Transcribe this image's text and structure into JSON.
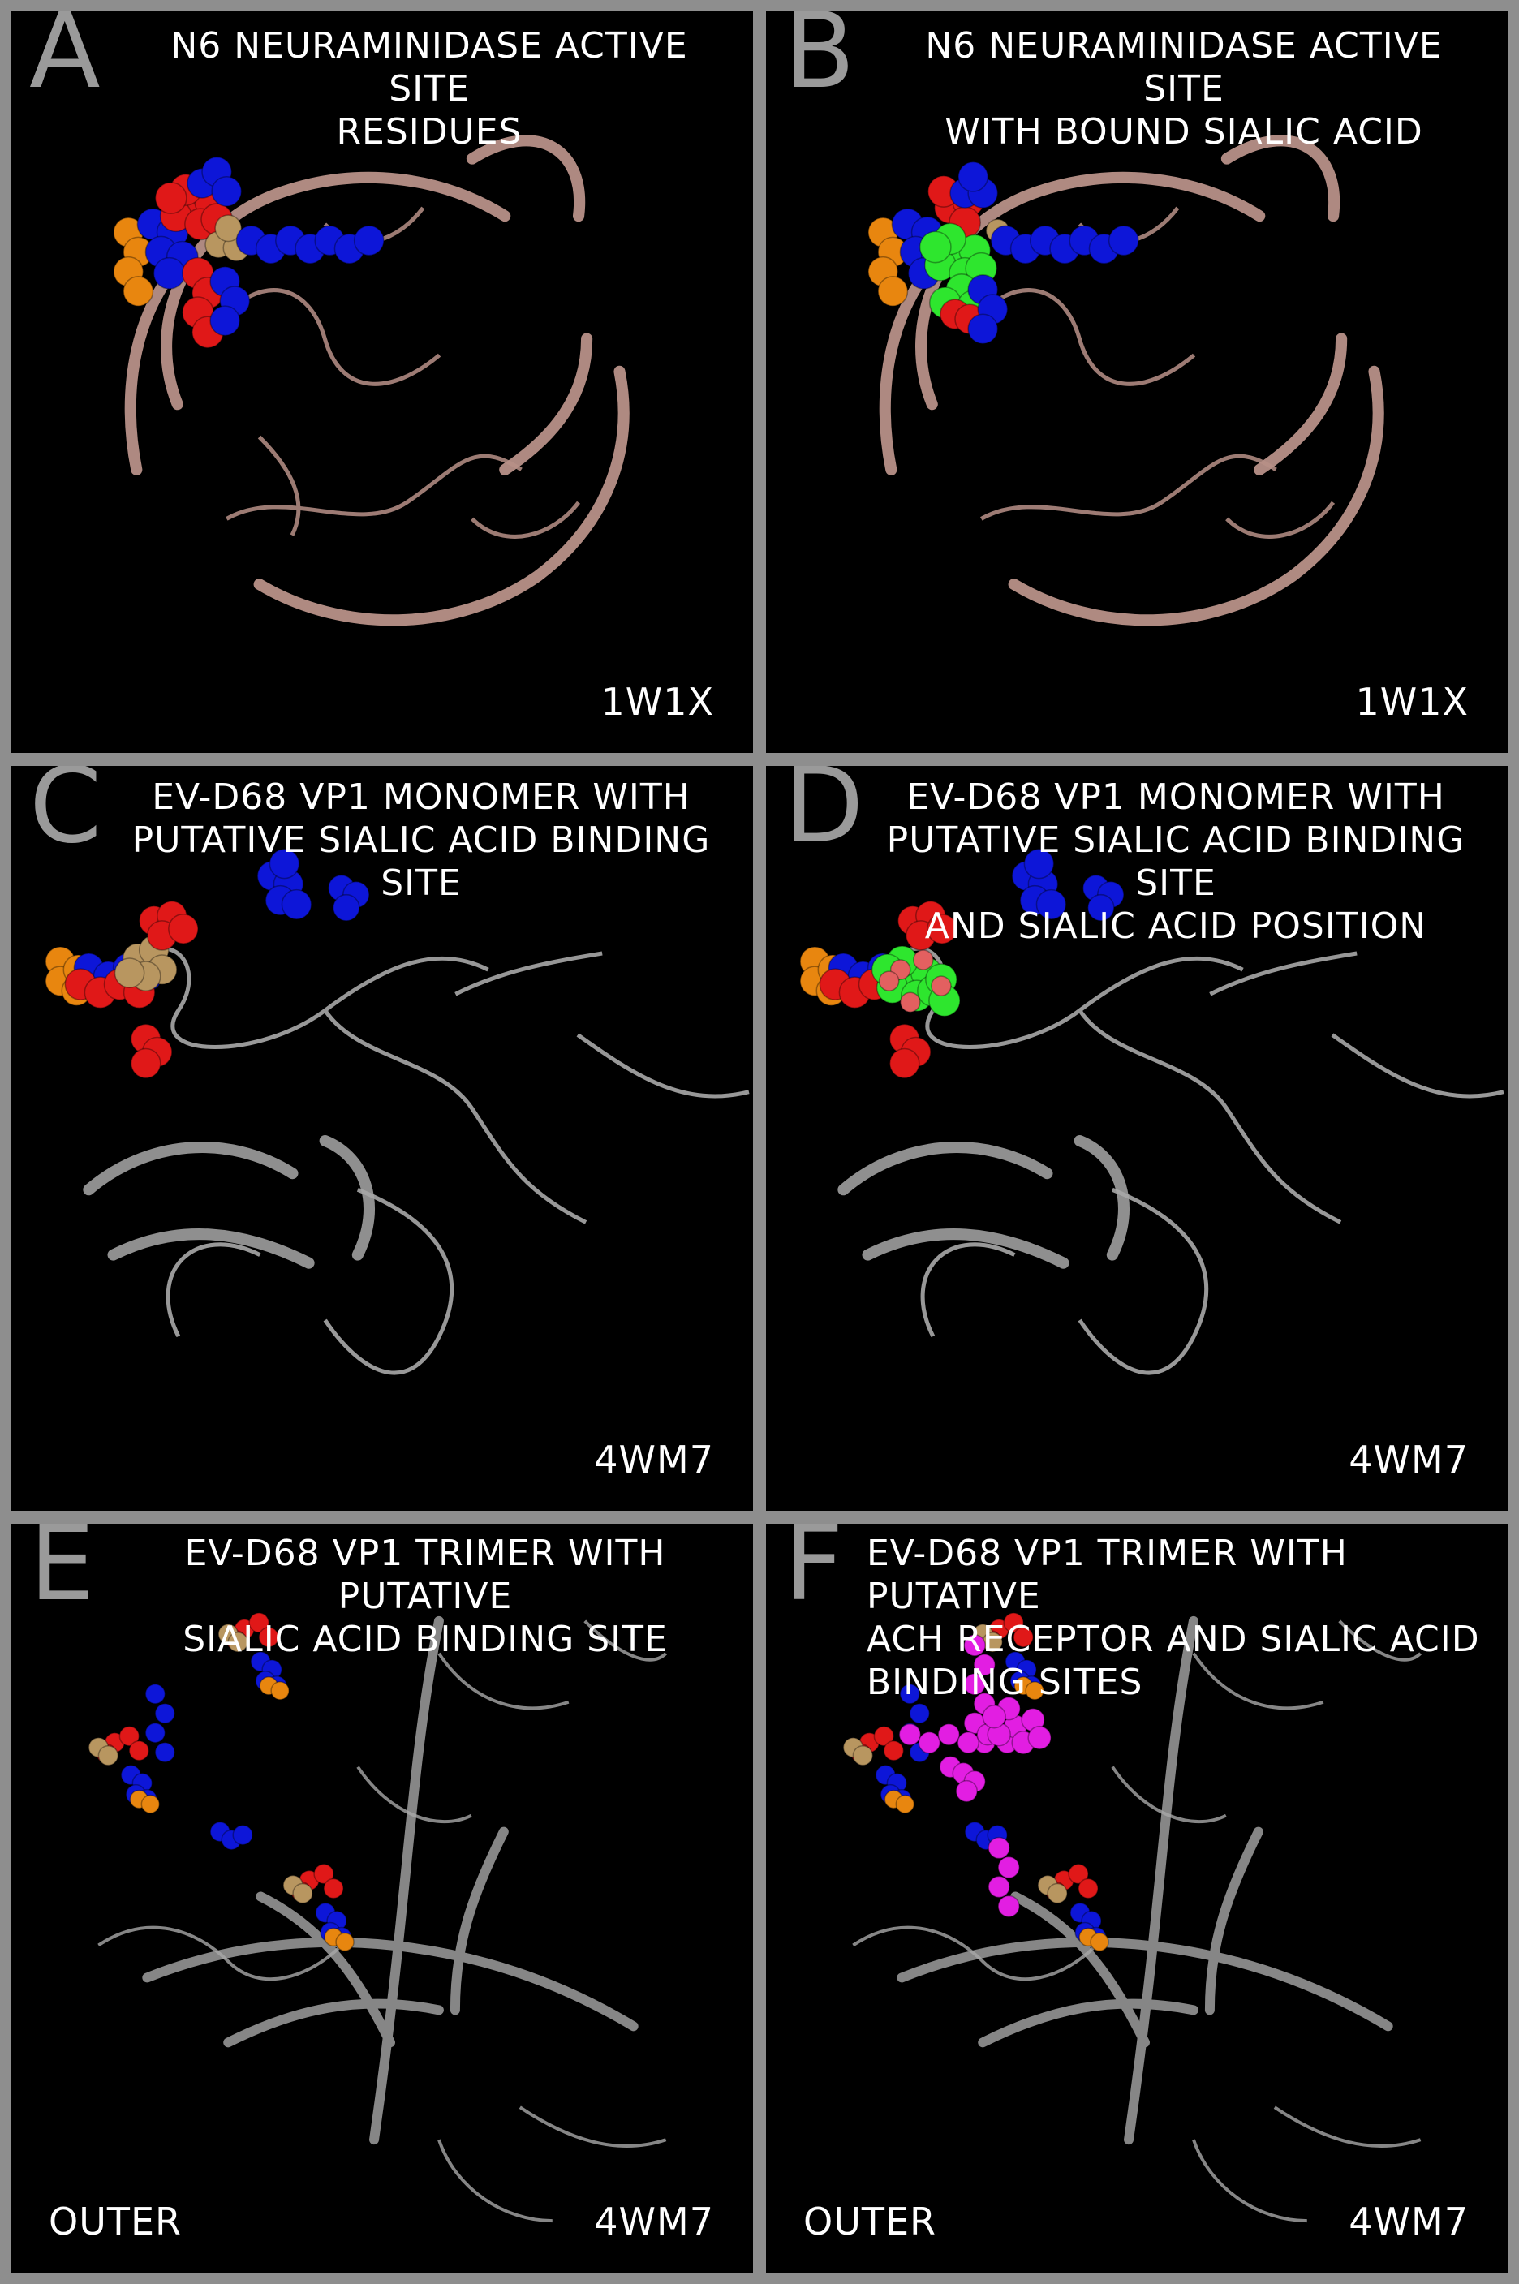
{
  "colors": {
    "background": "#8e8e8e",
    "panel": "#000000",
    "ribbon_neuraminidase": "#b89188",
    "ribbon_vp1": "#a8a8a8",
    "residue_blue": "#0d16d8",
    "residue_red": "#e01818",
    "residue_orange": "#e8860f",
    "residue_tan": "#b89660",
    "sialic_green": "#2ee62e",
    "ach_magenta": "#e21ee2"
  },
  "panels": [
    {
      "letter": "A",
      "title_lines": [
        "N6 NEURAMINIDASE ACTIVE SITE",
        "RESIDUES"
      ],
      "pdb": "1W1X",
      "corner": ""
    },
    {
      "letter": "B",
      "title_lines": [
        "N6 NEURAMINIDASE ACTIVE SITE",
        "WITH BOUND SIALIC ACID"
      ],
      "pdb": "1W1X",
      "corner": ""
    },
    {
      "letter": "C",
      "title_lines": [
        "EV-D68 VP1 MONOMER WITH",
        "PUTATIVE SIALIC ACID BINDING SITE"
      ],
      "pdb": "4WM7",
      "corner": ""
    },
    {
      "letter": "D",
      "title_lines": [
        "EV-D68 VP1 MONOMER WITH",
        "PUTATIVE SIALIC ACID BINDING SITE",
        "AND SIALIC ACID POSITION"
      ],
      "pdb": "4WM7",
      "corner": ""
    },
    {
      "letter": "E",
      "title_lines": [
        "EV-D68 VP1 TRIMER WITH PUTATIVE",
        "SIALIC ACID BINDING SITE"
      ],
      "pdb": "4WM7",
      "corner": "OUTER"
    },
    {
      "letter": "F",
      "title_lines": [
        "EV-D68 VP1 TRIMER WITH PUTATIVE",
        "ACH RECEPTOR AND SIALIC ACID",
        "BINDING SITES"
      ],
      "pdb": "4WM7",
      "corner": "OUTER"
    }
  ]
}
